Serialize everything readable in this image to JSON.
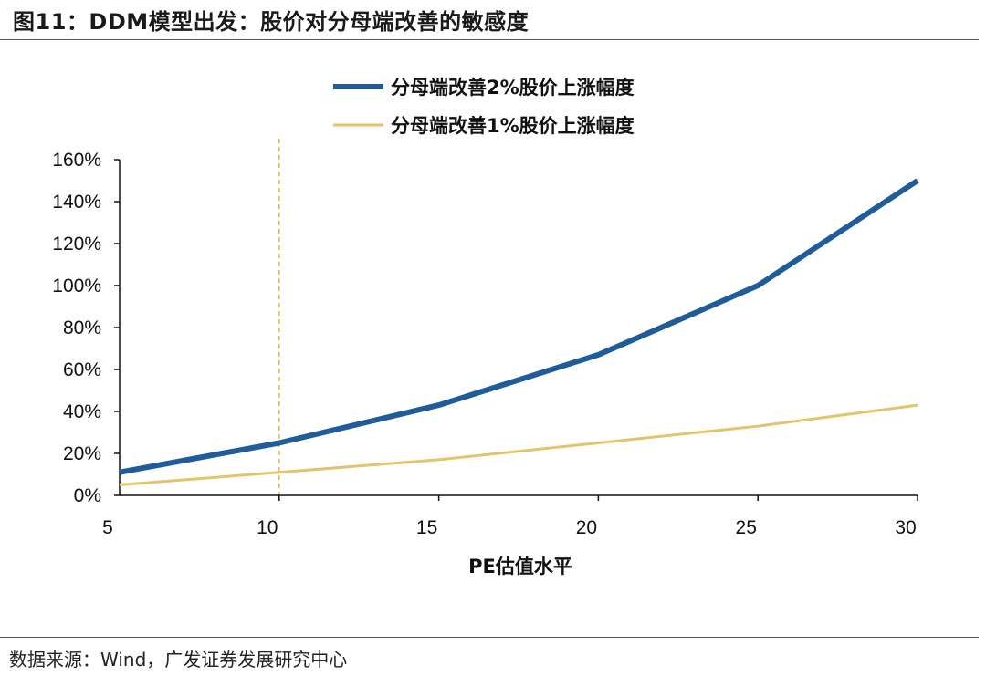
{
  "figure": {
    "title": "图11：DDM模型出发：股价对分母端改善的敏感度",
    "source": "数据来源：Wind，广发证券发展研究中心"
  },
  "chart_data": {
    "type": "line",
    "title": "",
    "xlabel": "PE估值水平",
    "ylabel": "",
    "x": [
      5,
      10,
      15,
      20,
      25,
      30
    ],
    "xlim": [
      5,
      30
    ],
    "ylim": [
      0,
      1.6
    ],
    "x_ticks": [
      "5",
      "10",
      "15",
      "20",
      "25",
      "30"
    ],
    "y_ticks": [
      "0%",
      "20%",
      "40%",
      "60%",
      "80%",
      "100%",
      "120%",
      "140%",
      "160%"
    ],
    "y_tick_values": [
      0,
      0.2,
      0.4,
      0.6,
      0.8,
      1.0,
      1.2,
      1.4,
      1.6
    ],
    "reference_line_x": 10,
    "legend_position": "top-center",
    "grid": false,
    "series": [
      {
        "name": "分母端改善2%股价上涨幅度",
        "color": "#1f5c99",
        "width": 6,
        "values": [
          0.11,
          0.25,
          0.43,
          0.67,
          1.0,
          1.5
        ]
      },
      {
        "name": "分母端改善1%股价上涨幅度",
        "color": "#e3c46e",
        "width": 3,
        "values": [
          0.05,
          0.11,
          0.17,
          0.25,
          0.33,
          0.43
        ]
      }
    ]
  }
}
